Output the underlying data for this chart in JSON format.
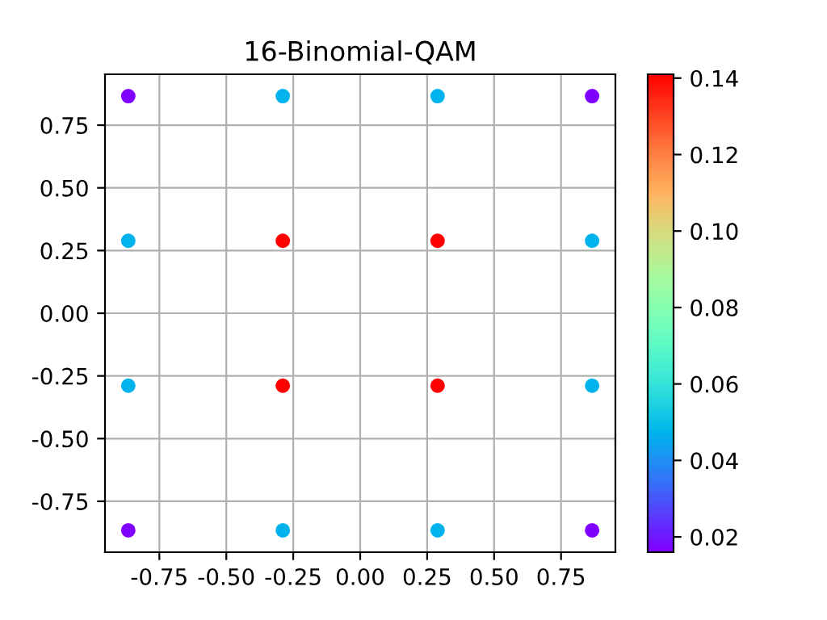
{
  "chart_data": {
    "type": "scatter",
    "title": "16-Binomial-QAM",
    "x": [
      -0.866,
      -0.289,
      0.289,
      0.866,
      -0.866,
      -0.289,
      0.289,
      0.866,
      -0.866,
      -0.289,
      0.289,
      0.866,
      -0.866,
      -0.289,
      0.289,
      0.866
    ],
    "values": [
      0.866,
      0.866,
      0.866,
      0.866,
      0.289,
      0.289,
      0.289,
      0.289,
      -0.289,
      -0.289,
      -0.289,
      -0.289,
      -0.866,
      -0.866,
      -0.866,
      -0.866
    ],
    "cvalues": [
      0.016,
      0.047,
      0.047,
      0.016,
      0.047,
      0.141,
      0.141,
      0.047,
      0.047,
      0.141,
      0.141,
      0.047,
      0.016,
      0.047,
      0.047,
      0.016
    ],
    "clim": [
      0.016,
      0.141
    ],
    "cticks": [
      0.02,
      0.04,
      0.06,
      0.08,
      {
        "value": 0.1,
        "label": "0.10"
      },
      0.12,
      0.14
    ],
    "xlim": [
      -0.953,
      0.953
    ],
    "ylim": [
      -0.953,
      0.953
    ],
    "xticks": [
      -0.75,
      {
        "value": -0.5,
        "label": "-0.50"
      },
      -0.25,
      {
        "value": 0,
        "label": "0.00"
      },
      0.25,
      {
        "value": 0.5,
        "label": "0.50"
      },
      0.75
    ],
    "yticks": [
      -0.75,
      {
        "value": -0.5,
        "label": "-0.50"
      },
      -0.25,
      {
        "value": 0,
        "label": "0.00"
      },
      0.25,
      {
        "value": 0.5,
        "label": "0.50"
      },
      0.75
    ],
    "grid": true,
    "marker": "circle"
  }
}
